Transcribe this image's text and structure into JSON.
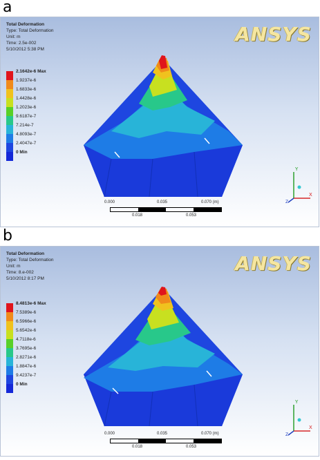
{
  "panels": [
    {
      "letter": "a",
      "logo": "ANSYS",
      "info": {
        "title": "Total Deformation",
        "type": "Type: Total Deformation",
        "unit": "Unit: m",
        "time": "Time: 2.5e-002",
        "date": "5/10/2012 5:38 PM"
      },
      "legend": [
        {
          "label": "2.1642e-6 Max",
          "color": "#e0141c"
        },
        {
          "label": "1.9237e-6",
          "color": "#f08a1a"
        },
        {
          "label": "1.6833e-6",
          "color": "#f0c21e"
        },
        {
          "label": "1.4428e-6",
          "color": "#c8e020"
        },
        {
          "label": "1.2023e-6",
          "color": "#58d028"
        },
        {
          "label": "9.6187e-7",
          "color": "#28c88a"
        },
        {
          "label": "7.214e-7",
          "color": "#28b4d8"
        },
        {
          "label": "4.8093e-7",
          "color": "#1e7ce6"
        },
        {
          "label": "2.4047e-7",
          "color": "#1e46e0"
        },
        {
          "label": "0 Min",
          "color": "#1428d8"
        }
      ],
      "scale": {
        "t0": "0.000",
        "t1": "0.035",
        "t2": "0.070 (m)",
        "b1": "0.018",
        "b2": "0.053"
      }
    },
    {
      "letter": "b",
      "logo": "ANSYS",
      "info": {
        "title": "Total Deformation",
        "type": "Type: Total Deformation",
        "unit": "Unit: m",
        "time": "Time: 8.e-002",
        "date": "5/10/2012 8:17 PM"
      },
      "legend": [
        {
          "label": "8.4813e-6 Max",
          "color": "#e0141c"
        },
        {
          "label": "7.5389e-6",
          "color": "#f08a1a"
        },
        {
          "label": "6.5966e-6",
          "color": "#f0c21e"
        },
        {
          "label": "5.6542e-6",
          "color": "#c8e020"
        },
        {
          "label": "4.7118e-6",
          "color": "#58d028"
        },
        {
          "label": "3.7695e-6",
          "color": "#28c88a"
        },
        {
          "label": "2.8271e-6",
          "color": "#28b4d8"
        },
        {
          "label": "1.8847e-6",
          "color": "#1e7ce6"
        },
        {
          "label": "9.4237e-7",
          "color": "#1e46e0"
        },
        {
          "label": "0 Min",
          "color": "#1428d8"
        }
      ],
      "scale": {
        "t0": "0.000",
        "t1": "0.035",
        "t2": "0.070 (m)",
        "b1": "0.018",
        "b2": "0.053"
      }
    }
  ],
  "triad_labels": {
    "x": "X",
    "y": "Y",
    "z": "Z"
  }
}
